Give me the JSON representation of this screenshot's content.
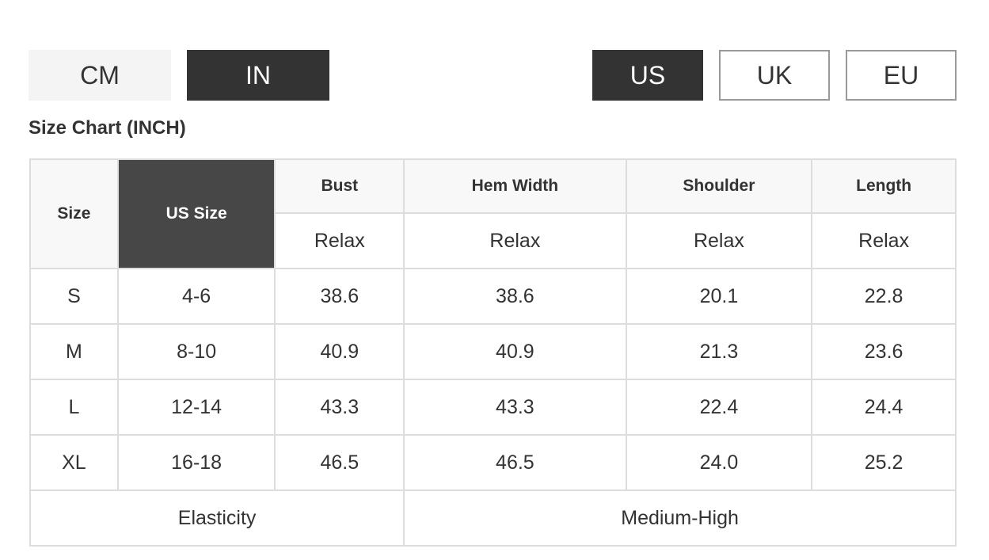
{
  "unit_toggle": {
    "cm": "CM",
    "in": "IN",
    "selected": "IN"
  },
  "region_toggle": {
    "us": "US",
    "uk": "UK",
    "eu": "EU",
    "selected": "US"
  },
  "title": "Size Chart (INCH)",
  "table": {
    "headers": {
      "size": "Size",
      "us_size": "US Size",
      "bust": "Bust",
      "hem_width": "Hem Width",
      "shoulder": "Shoulder",
      "length": "Length"
    },
    "fit": [
      "Relax",
      "Relax",
      "Relax",
      "Relax"
    ],
    "rows": [
      [
        "S",
        "4-6",
        "38.6",
        "38.6",
        "20.1",
        "22.8"
      ],
      [
        "M",
        "8-10",
        "40.9",
        "40.9",
        "21.3",
        "23.6"
      ],
      [
        "L",
        "12-14",
        "43.3",
        "43.3",
        "22.4",
        "24.4"
      ],
      [
        "XL",
        "16-18",
        "46.5",
        "46.5",
        "24.0",
        "25.2"
      ]
    ],
    "footer": {
      "label": "Elasticity",
      "value": "Medium-High"
    }
  }
}
